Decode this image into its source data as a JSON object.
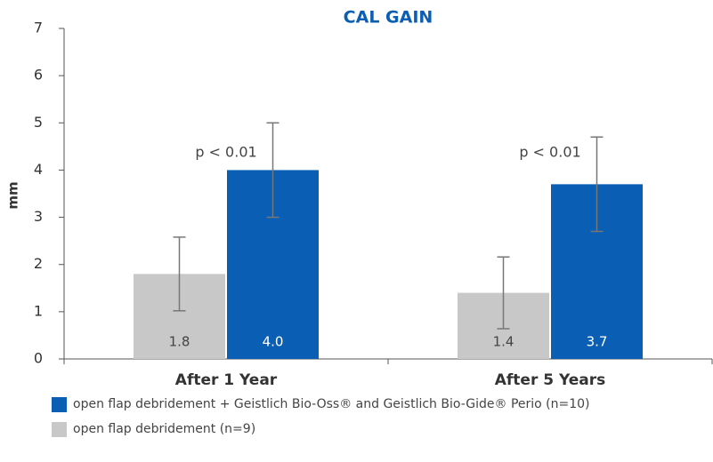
{
  "chart_data": {
    "type": "bar",
    "title": "CAL GAIN",
    "y_label": "mm",
    "categories": [
      "After 1 Year",
      "After 5 Years"
    ],
    "annotations": [
      "p < 0.01",
      "p < 0.01"
    ],
    "series": [
      {
        "name": "open flap debridement + Geistlich Bio-Oss® and Geistlich Bio-Gide® Perio (n=10)",
        "color": "#0a5fb4",
        "values": [
          4.0,
          3.7
        ],
        "value_labels": [
          "4.0",
          "3.7"
        ],
        "errors": [
          1.0,
          1.0
        ]
      },
      {
        "name": "open flap debridement (n=9)",
        "color": "#c8c8c8",
        "values": [
          1.8,
          1.4
        ],
        "value_labels": [
          "1.8",
          "1.4"
        ],
        "errors": [
          0.78,
          0.76
        ]
      }
    ],
    "ylim": [
      0,
      7
    ],
    "yticks": [
      0,
      1,
      2,
      3,
      4,
      5,
      6,
      7
    ],
    "grid": false
  }
}
